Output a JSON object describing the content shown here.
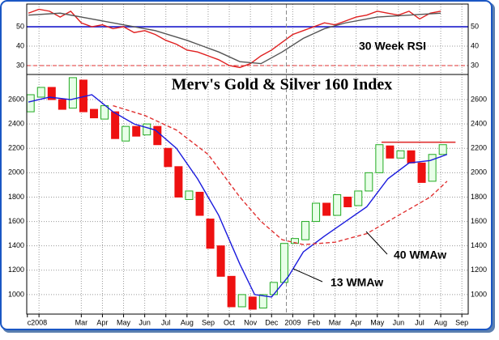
{
  "chart_data": [
    {
      "type": "line",
      "annotations": [
        "30 Week RSI"
      ],
      "xlim": [
        0.42,
        21.3
      ],
      "ylim": [
        25.4,
        61.7
      ],
      "yticks": [
        30,
        40,
        50
      ],
      "grid": true,
      "hlines": [
        {
          "value": 50,
          "color": "#1a1acc",
          "style": "solid"
        },
        {
          "value": 30,
          "color": "#e03030",
          "style": "dashed"
        }
      ],
      "series": [
        {
          "color": "#e02020",
          "x": [
            0.5,
            1,
            1.5,
            2,
            2.5,
            3,
            3.5,
            4,
            4.5,
            5,
            5.5,
            6,
            6.5,
            7,
            7.5,
            8,
            8.5,
            9,
            9.5,
            10,
            10.5,
            11,
            11.5,
            12,
            12.5,
            13,
            13.5,
            14,
            14.5,
            15,
            15.5,
            16,
            16.5,
            17,
            17.5,
            18,
            18.5,
            19,
            19.5,
            20
          ],
          "values": [
            57,
            59,
            58,
            55,
            58,
            52,
            50,
            51,
            49,
            50,
            47,
            48,
            46,
            43,
            41,
            38,
            37,
            35,
            33,
            30,
            29,
            31,
            35,
            38,
            42,
            46,
            48,
            50,
            52,
            51,
            53,
            55,
            56,
            58,
            57,
            56,
            58,
            54,
            57,
            58
          ]
        },
        {
          "color": "#555555",
          "x": [
            0.5,
            2,
            3.5,
            5,
            6.5,
            8,
            9.5,
            10.5,
            11.5,
            12.5,
            13.5,
            14.5,
            15.5,
            17,
            18.5,
            20
          ],
          "values": [
            56,
            57,
            54,
            51,
            48,
            43,
            37,
            32,
            31,
            37,
            44,
            49,
            52,
            55,
            56,
            57
          ]
        }
      ]
    },
    {
      "type": "candlestick",
      "title": "Merv's Gold & Silver 160 Index",
      "xlim": [
        0.42,
        21.3
      ],
      "ylim": [
        840,
        2806
      ],
      "yticks": [
        1000,
        1200,
        1400,
        1600,
        1800,
        2000,
        2200,
        2400,
        2600
      ],
      "grid": true,
      "xticks": [
        {
          "value": 0.45,
          "label": "c"
        },
        {
          "value": 1,
          "label": "2008"
        },
        {
          "value": 3,
          "label": "Mar"
        },
        {
          "value": 4,
          "label": "Apr"
        },
        {
          "value": 5,
          "label": "May"
        },
        {
          "value": 6,
          "label": "Jun"
        },
        {
          "value": 7,
          "label": "Jul"
        },
        {
          "value": 8,
          "label": "Aug"
        },
        {
          "value": 9,
          "label": "Sep"
        },
        {
          "value": 10,
          "label": "Oct"
        },
        {
          "value": 11,
          "label": "Nov"
        },
        {
          "value": 12,
          "label": "Dec"
        },
        {
          "value": 13,
          "label": "2009"
        },
        {
          "value": 14,
          "label": "Feb"
        },
        {
          "value": 15,
          "label": "Mar"
        },
        {
          "value": 16,
          "label": "Apr"
        },
        {
          "value": 17,
          "label": "May"
        },
        {
          "value": 18,
          "label": "Jun"
        },
        {
          "value": 19,
          "label": "Jul"
        },
        {
          "value": 20,
          "label": "Aug"
        },
        {
          "value": 21,
          "label": "Sep"
        }
      ],
      "up_color": "#22aa22",
      "down_color": "#ee1111",
      "x": [
        0.6,
        1.1,
        1.6,
        2.1,
        2.6,
        3.1,
        3.6,
        4.1,
        4.6,
        5.1,
        5.6,
        6.1,
        6.6,
        7.1,
        7.6,
        8.1,
        8.6,
        9.1,
        9.6,
        10.1,
        10.6,
        11.1,
        11.6,
        12.1,
        12.6,
        13.1,
        13.6,
        14.1,
        14.6,
        15.1,
        15.6,
        16.1,
        16.6,
        17.1,
        17.6,
        18.1,
        18.6,
        19.1,
        19.6,
        20.1
      ],
      "open": [
        2500,
        2620,
        2700,
        2600,
        2530,
        2760,
        2520,
        2440,
        2500,
        2260,
        2380,
        2310,
        2380,
        2200,
        2050,
        1780,
        1840,
        1620,
        1400,
        1150,
        900,
        980,
        890,
        1000,
        1100,
        1420,
        1450,
        1600,
        1750,
        1650,
        1800,
        1730,
        1850,
        2000,
        2220,
        2120,
        2180,
        2080,
        1930,
        2150
      ],
      "close": [
        2640,
        2700,
        2600,
        2520,
        2780,
        2500,
        2450,
        2550,
        2280,
        2380,
        2300,
        2400,
        2230,
        2050,
        1800,
        1850,
        1650,
        1380,
        1150,
        900,
        1000,
        880,
        1000,
        1100,
        1420,
        1460,
        1600,
        1750,
        1650,
        1820,
        1720,
        1850,
        2000,
        2230,
        2120,
        2180,
        2080,
        1920,
        2150,
        2230
      ],
      "series": [
        {
          "name": "13 WMAw",
          "color": "#1a1add",
          "style": "solid",
          "x": [
            0.5,
            1.5,
            2.5,
            3.5,
            4.5,
            5.5,
            6.5,
            7.5,
            8.5,
            9.5,
            10.5,
            11.2,
            12,
            12.8,
            13.5,
            14.5,
            15.5,
            16.5,
            17.5,
            18.5,
            19.5,
            20.3
          ],
          "values": [
            2580,
            2620,
            2600,
            2640,
            2500,
            2400,
            2350,
            2200,
            1950,
            1650,
            1250,
            1000,
            980,
            1150,
            1350,
            1480,
            1600,
            1720,
            1950,
            2080,
            2100,
            2150
          ]
        },
        {
          "name": "40 WMAw",
          "color": "#e03030",
          "style": "dashed",
          "x": [
            4.5,
            6,
            7.5,
            9,
            10.5,
            11.5,
            12.5,
            13.5,
            15,
            16.5,
            18,
            19.5,
            20.3
          ],
          "values": [
            2550,
            2470,
            2350,
            2150,
            1800,
            1600,
            1450,
            1410,
            1430,
            1500,
            1650,
            1800,
            1930
          ]
        }
      ],
      "hlines": [
        {
          "value": 2250,
          "xrange": [
            17.2,
            20.7
          ],
          "color": "#e03030",
          "style": "solid"
        }
      ],
      "vlines": [
        {
          "value": 12.7,
          "color": "#888888",
          "style": "dashed"
        }
      ]
    }
  ]
}
